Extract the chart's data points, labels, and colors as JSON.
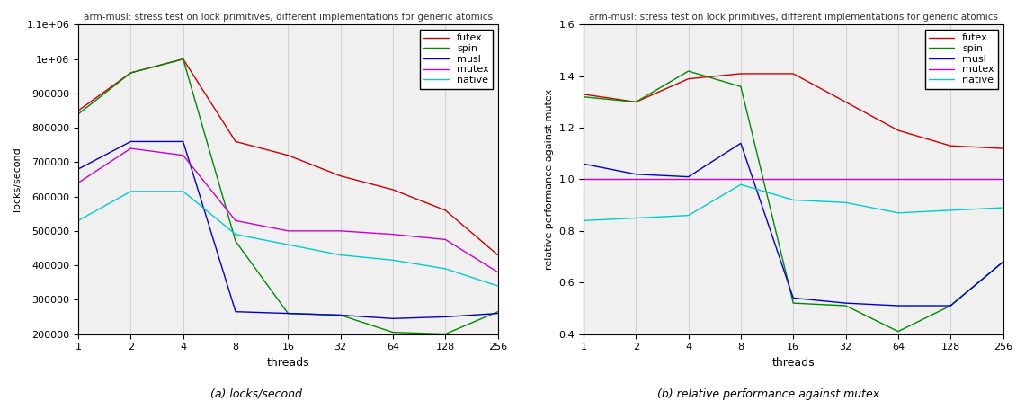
{
  "title": "arm-musl: stress test on lock primitives, different implementations for generic atomics",
  "threads": [
    1,
    2,
    4,
    8,
    16,
    32,
    64,
    128,
    256
  ],
  "left": {
    "ylabel": "locks/second",
    "xlabel": "threads",
    "ylim": [
      200000,
      1100000
    ],
    "yticks": [
      200000,
      300000,
      400000,
      500000,
      600000,
      700000,
      800000,
      900000,
      1000000,
      1100000
    ],
    "ytick_labels": [
      "200000",
      "300000",
      "400000",
      "500000",
      "600000",
      "700000",
      "800000",
      "900000",
      "1e+06",
      "1.1e+06"
    ],
    "series": {
      "futex": [
        850000,
        960000,
        1000000,
        760000,
        720000,
        660000,
        620000,
        560000,
        430000
      ],
      "spin": [
        840000,
        960000,
        1000000,
        470000,
        260000,
        255000,
        205000,
        200000,
        265000
      ],
      "musl": [
        680000,
        760000,
        760000,
        265000,
        260000,
        255000,
        245000,
        250000,
        260000
      ],
      "mutex": [
        640000,
        740000,
        720000,
        530000,
        500000,
        500000,
        490000,
        475000,
        380000
      ],
      "native": [
        530000,
        615000,
        615000,
        490000,
        460000,
        430000,
        415000,
        390000,
        340000
      ]
    }
  },
  "right": {
    "ylabel": "relative performance against mutex",
    "xlabel": "threads",
    "ylim": [
      0.4,
      1.6
    ],
    "yticks": [
      0.4,
      0.6,
      0.8,
      1.0,
      1.2,
      1.4,
      1.6
    ],
    "series": {
      "futex": [
        1.33,
        1.3,
        1.39,
        1.41,
        1.41,
        1.3,
        1.19,
        1.13,
        1.12
      ],
      "spin": [
        1.32,
        1.3,
        1.42,
        1.36,
        0.52,
        0.51,
        0.41,
        0.51,
        0.68
      ],
      "musl": [
        1.06,
        1.02,
        1.01,
        1.14,
        0.54,
        0.52,
        0.51,
        0.51,
        0.68
      ],
      "mutex": [
        1.0,
        1.0,
        1.0,
        1.0,
        1.0,
        1.0,
        1.0,
        1.0,
        1.0
      ],
      "native": [
        0.84,
        0.85,
        0.86,
        0.98,
        0.92,
        0.91,
        0.87,
        0.88,
        0.89
      ]
    }
  },
  "colors": {
    "futex": "#cc0000",
    "spin": "#008800",
    "musl": "#0000cc",
    "mutex": "#cc00cc",
    "native": "#00cccc"
  },
  "bg_color": "#f0f0f0",
  "legend_order": [
    "futex",
    "spin",
    "musl",
    "mutex",
    "native"
  ],
  "caption_left": "(a) locks/second",
  "caption_right": "(b) relative performance against mutex"
}
